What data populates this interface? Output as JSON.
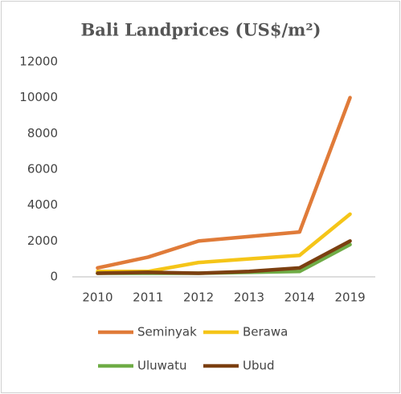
{
  "chart_data": {
    "type": "line",
    "title": "Bali Landprices (US$/m²)",
    "categories": [
      "2010",
      "2011",
      "2012",
      "2013",
      "2014",
      "2019"
    ],
    "series": [
      {
        "name": "Seminyak",
        "color": "#e07b39",
        "values": [
          500,
          1100,
          2000,
          2250,
          2500,
          10000
        ]
      },
      {
        "name": "Berawa",
        "color": "#f5c518",
        "values": [
          300,
          300,
          800,
          1000,
          1200,
          3500
        ]
      },
      {
        "name": "Uluwatu",
        "color": "#6fac46",
        "values": [
          200,
          200,
          200,
          250,
          300,
          1800
        ]
      },
      {
        "name": "Ubud",
        "color": "#7b3f10",
        "values": [
          200,
          250,
          200,
          300,
          500,
          2000
        ]
      }
    ],
    "ylim": [
      0,
      12000
    ],
    "yticks": [
      0,
      2000,
      4000,
      6000,
      8000,
      10000,
      12000
    ],
    "grid": false,
    "legend": "bottom"
  }
}
